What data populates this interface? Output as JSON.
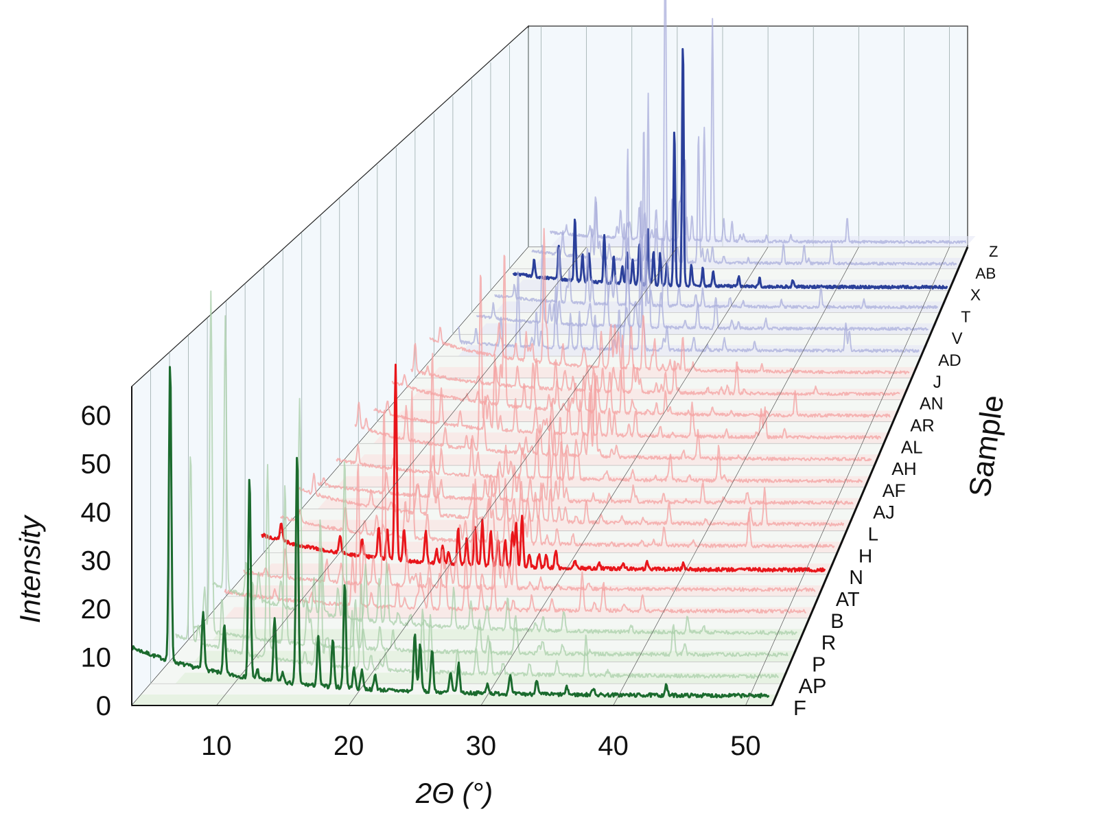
{
  "chart_data": {
    "type": "line",
    "subtype": "3d-waterfall",
    "title": "",
    "xlabel": "2Θ (°)",
    "ylabel": "Intensity",
    "zlabel": "Sample",
    "xlim": [
      3.6,
      52
    ],
    "ylim": [
      0,
      65
    ],
    "xticks": [
      "10",
      "20",
      "30",
      "40",
      "50"
    ],
    "xtick_values": [
      10,
      20,
      30,
      40,
      50
    ],
    "yticks": [
      "0",
      "10",
      "20",
      "30",
      "40",
      "50",
      "60"
    ],
    "ytick_values": [
      0,
      10,
      20,
      30,
      40,
      50,
      60
    ],
    "samples": [
      "F",
      "AP",
      "P",
      "R",
      "B",
      "AT",
      "N",
      "H",
      "L",
      "AJ",
      "AF",
      "AH",
      "AL",
      "AR",
      "AN",
      "J",
      "AD",
      "V",
      "T",
      "X",
      "AB",
      "Z"
    ],
    "groups": [
      {
        "name": "green",
        "color": "#1b6b2e",
        "light": "#a9cfa9",
        "fill": "#dcefd6",
        "samples": [
          "F",
          "AP",
          "P",
          "R"
        ]
      },
      {
        "name": "red",
        "color": "#e8161b",
        "light": "#f4a0a0",
        "fill": "#fbe0df",
        "samples": [
          "B",
          "AT",
          "N",
          "H",
          "L",
          "AJ",
          "AF",
          "AH",
          "AL",
          "AR",
          "AN",
          "J"
        ]
      },
      {
        "name": "blue",
        "color": "#2a3f9a",
        "light": "#a9aedb",
        "fill": "#e3e6f6",
        "samples": [
          "AD",
          "V",
          "T",
          "X",
          "AB",
          "Z"
        ]
      }
    ],
    "highlighted": [
      {
        "sample": "F",
        "baseline_start": 12,
        "baseline_end": 2,
        "peaks_2theta": [
          6.5,
          9.0,
          10.6,
          12.5,
          13.1,
          14.4,
          15.0,
          16.1,
          17.7,
          18.8,
          19.7,
          20.4,
          21.0,
          22.0,
          25.0,
          25.4,
          26.3,
          27.7,
          28.3,
          30.5,
          32.2,
          34.2,
          36.5,
          38.5,
          44.0
        ],
        "peaks_height": [
          62,
          12,
          10,
          42,
          2,
          13,
          2,
          48,
          10,
          10,
          22,
          4,
          4,
          3,
          12,
          10,
          9,
          4,
          6,
          2,
          4,
          3,
          1.5,
          1.5,
          2
        ]
      },
      {
        "sample": "N",
        "baseline_start": 9,
        "baseline_end": 1,
        "peaks_2theta": [
          6.6,
          11.5,
          13.3,
          14.7,
          15.4,
          16.1,
          16.8,
          18.6,
          19.5,
          20.0,
          20.5,
          21.3,
          22.0,
          22.7,
          23.3,
          24.0,
          24.6,
          25.2,
          25.8,
          26.1,
          26.6,
          27.2,
          28.0,
          28.6,
          29.4,
          31.0,
          33.0,
          35.0,
          37.0,
          40.0
        ],
        "peaks_height": [
          4,
          4,
          4,
          7,
          7,
          44,
          7,
          7,
          3,
          4,
          3,
          8,
          6,
          9,
          10,
          8,
          6,
          6,
          8,
          10,
          12,
          3,
          3,
          3,
          4,
          2,
          1.5,
          1.5,
          1.5,
          1.5
        ]
      },
      {
        "sample": "X",
        "baseline_start": 5,
        "baseline_end": 1,
        "peaks_2theta": [
          5.5,
          8.2,
          10.8,
          12.5,
          13.3,
          14.0,
          15.6,
          16.6,
          17.5,
          18.0,
          18.6,
          19.3,
          20.2,
          20.8,
          21.5,
          22.2,
          23.0,
          23.9,
          24.8,
          26.0,
          27.1,
          29.8,
          32.0,
          35.5
        ],
        "peaks_height": [
          6,
          5,
          10,
          18,
          8,
          8,
          14,
          8,
          5,
          9,
          7,
          12,
          16,
          10,
          9,
          6,
          45,
          70,
          6,
          5,
          4,
          3,
          2.5,
          2
        ]
      }
    ]
  }
}
